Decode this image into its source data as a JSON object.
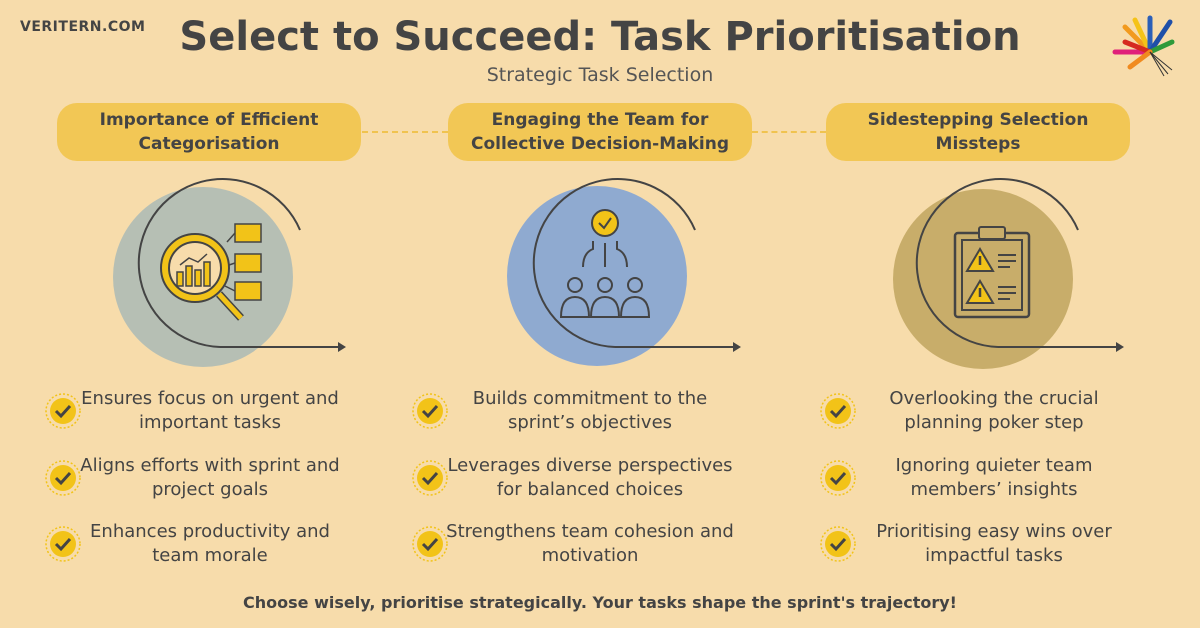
{
  "brand": "VERITERN.COM",
  "title": "Select to Succeed: Task Prioritisation",
  "subtitle": "Strategic Task Selection",
  "colors": {
    "background": "#f7dcab",
    "pill": "#f2c755",
    "text": "#444444",
    "disc1": "#b6bfb4",
    "disc2": "#8faad0",
    "disc3": "#c8ad6a"
  },
  "columns": [
    {
      "heading": "Importance of Efficient Categorisation",
      "icon": "magnifier-chart-icon",
      "bullets": [
        "Ensures focus on urgent and important tasks",
        "Aligns efforts with sprint and project goals",
        "Enhances productivity and team morale"
      ]
    },
    {
      "heading": "Engaging the Team for Collective Decision-Making",
      "icon": "team-decision-icon",
      "bullets": [
        "Builds commitment to the sprint’s objectives",
        "Leverages diverse perspectives for balanced choices",
        "Strengthens team cohesion and motivation"
      ]
    },
    {
      "heading": "Sidestepping Selection Missteps",
      "icon": "clipboard-warning-icon",
      "bullets": [
        "Overlooking the crucial planning poker step",
        "Ignoring quieter team members’ insights",
        "Prioritising easy wins over impactful tasks"
      ]
    }
  ],
  "footer": "Choose wisely, prioritise strategically. Your tasks shape the sprint's trajectory!"
}
